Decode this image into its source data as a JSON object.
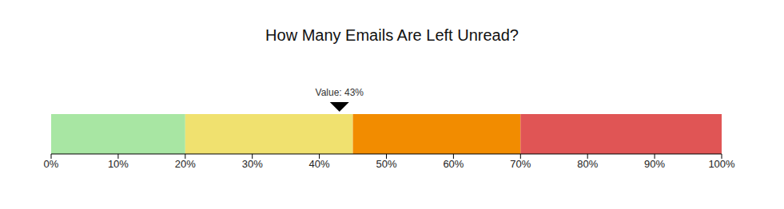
{
  "chart_data": {
    "type": "bar",
    "title": "How Many Emails Are Left Unread?",
    "orientation": "horizontal",
    "stacked": true,
    "tick_labels": "x",
    "categories": [
      null
    ],
    "series": [
      {
        "color": "#a8e6a3",
        "values": [
          20
        ]
      },
      {
        "color": "#f0e16f",
        "values": [
          25
        ]
      },
      {
        "color": "#f28c00",
        "values": [
          25
        ]
      },
      {
        "color": "#e05555",
        "values": [
          30
        ]
      }
    ],
    "xlim": [
      0,
      100
    ],
    "xticks": [
      {
        "value": 0,
        "label": "0%"
      },
      {
        "value": 10,
        "label": "10%"
      },
      {
        "value": 20,
        "label": "20%"
      },
      {
        "value": 30,
        "label": "30%"
      },
      {
        "value": 40,
        "label": "40%"
      },
      {
        "value": 50,
        "label": "50%"
      },
      {
        "value": 60,
        "label": "60%"
      },
      {
        "value": 70,
        "label": "70%"
      },
      {
        "value": 80,
        "label": "80%"
      },
      {
        "value": 90,
        "label": "90%"
      },
      {
        "value": 100,
        "label": "100%"
      }
    ],
    "pointer": {
      "values": [
        43
      ],
      "value_labels": [
        "Value: 43%"
      ]
    }
  }
}
